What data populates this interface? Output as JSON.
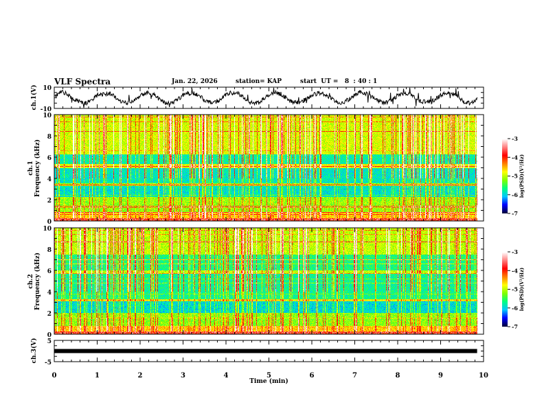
{
  "header": {
    "title": "VLF Spectra",
    "date": "Jan. 22, 2026",
    "station": "station= KAP",
    "start_ut": "start  UT =   8  : 40 : 1"
  },
  "colors": {
    "trace": "#000000",
    "axis": "#000000",
    "colormap": [
      "#000040",
      "#0000ff",
      "#00c8ff",
      "#00ff80",
      "#80ff00",
      "#ffff00",
      "#ff8000",
      "#ff0000",
      "#ff8080",
      "#ffffff"
    ]
  },
  "chart_data": [
    {
      "type": "line",
      "name": "ch1-waveform",
      "ylabel": "ch.1(V)",
      "ylim": [
        -10,
        10
      ],
      "yticks": [
        "10",
        "-10"
      ],
      "xlim": [
        0,
        10
      ],
      "data_end_min": 9.85,
      "description_values": "oscillating noisy waveform between about -7 and 8 V"
    },
    {
      "type": "heatmap",
      "name": "ch1-spectrogram",
      "ylabel_top": "ch.1",
      "ylabel": "Frequency (kHz)",
      "ylim": [
        0,
        10
      ],
      "yticks": [
        "0",
        "2",
        "4",
        "6",
        "8",
        "10"
      ],
      "xlim": [
        0,
        10
      ],
      "colorbar": {
        "label": "log(PSD)(V²/Hz)",
        "range": [
          -7,
          -3
        ],
        "ticks": [
          "-3",
          "-4",
          "-5",
          "-6",
          "-7"
        ]
      }
    },
    {
      "type": "heatmap",
      "name": "ch2-spectrogram",
      "ylabel_top": "ch.2",
      "ylabel": "Frequency (kHz)",
      "ylim": [
        0,
        10
      ],
      "yticks": [
        "0",
        "2",
        "4",
        "6",
        "8",
        "10"
      ],
      "xlim": [
        0,
        10
      ],
      "colorbar": {
        "label": "log(PSD)(V²/Hz)",
        "range": [
          -7,
          -3
        ],
        "ticks": [
          "-3",
          "-4",
          "-5",
          "-6",
          "-7"
        ]
      }
    },
    {
      "type": "line",
      "name": "ch3-waveform",
      "ylabel": "ch.3(V)",
      "ylim": [
        -5,
        5
      ],
      "yticks": [
        "5",
        "-5"
      ],
      "xlim": [
        0,
        10
      ],
      "constant_value": 0,
      "data_end_min": 9.85
    }
  ],
  "xaxis": {
    "label": "Time  (min)",
    "ticks": [
      "0",
      "1",
      "2",
      "3",
      "4",
      "5",
      "6",
      "7",
      "8",
      "9",
      "10"
    ]
  }
}
